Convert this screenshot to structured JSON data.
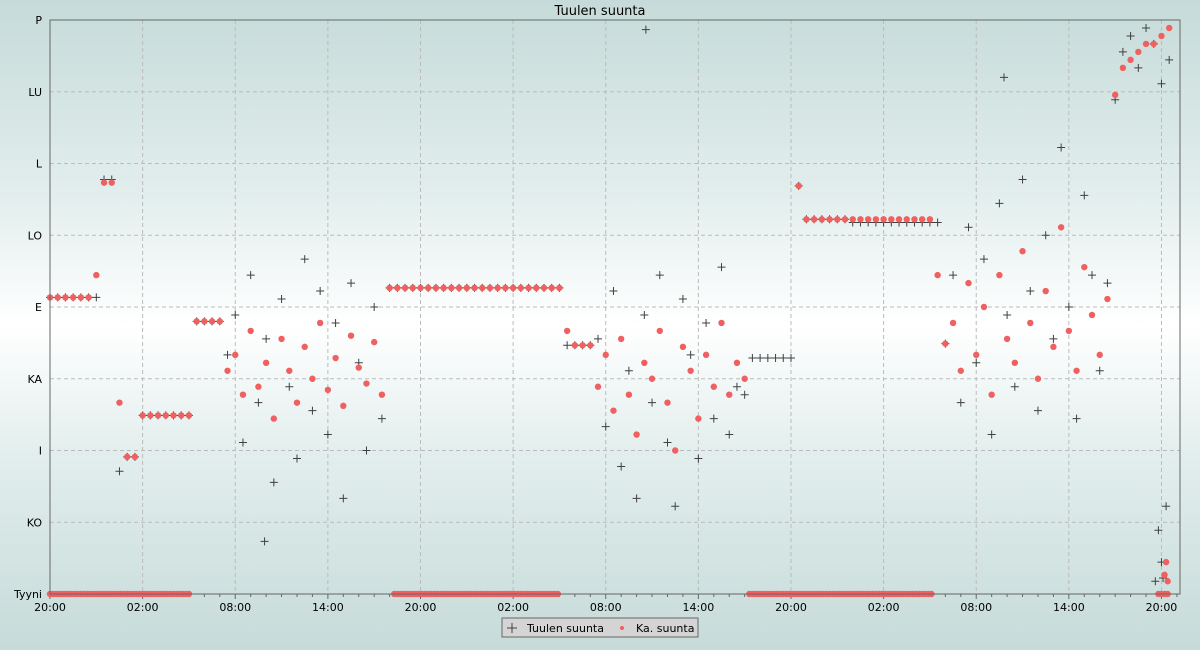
{
  "chart_data": {
    "type": "scatter",
    "title": "Tuulen suunta",
    "xlabel": "",
    "ylabel": "",
    "x_unit": "hours from start",
    "xlim": [
      0,
      73.2
    ],
    "ylim": [
      0,
      360
    ],
    "grid": true,
    "legend_position": "bottom-center",
    "y_ticks": [
      {
        "value": 0,
        "label": "Tyyni"
      },
      {
        "value": 45,
        "label": "KO"
      },
      {
        "value": 90,
        "label": "I"
      },
      {
        "value": 135,
        "label": "KA"
      },
      {
        "value": 180,
        "label": "E"
      },
      {
        "value": 225,
        "label": "LO"
      },
      {
        "value": 270,
        "label": "L"
      },
      {
        "value": 315,
        "label": "LU"
      },
      {
        "value": 360,
        "label": "P"
      }
    ],
    "x_ticks": [
      {
        "value": 0,
        "label": "20:00"
      },
      {
        "value": 6,
        "label": "02:00"
      },
      {
        "value": 12,
        "label": "08:00"
      },
      {
        "value": 18,
        "label": "14:00"
      },
      {
        "value": 24,
        "label": "20:00"
      },
      {
        "value": 30,
        "label": "02:00"
      },
      {
        "value": 36,
        "label": "08:00"
      },
      {
        "value": 42,
        "label": "14:00"
      },
      {
        "value": 48,
        "label": "20:00"
      },
      {
        "value": 54,
        "label": "02:00"
      },
      {
        "value": 60,
        "label": "08:00"
      },
      {
        "value": 66,
        "label": "14:00"
      },
      {
        "value": 72,
        "label": "20:00"
      }
    ],
    "sample_step_hours": 0.5,
    "series": [
      {
        "name": "Tuulen suunta",
        "marker": "plus",
        "color": "#404040",
        "values": [
          186,
          186,
          186,
          186,
          186,
          186,
          186,
          260,
          260,
          77,
          86,
          86,
          112,
          112,
          112,
          112,
          112,
          112,
          112,
          171,
          171,
          171,
          171,
          150,
          175,
          95,
          200,
          120,
          160,
          70,
          185,
          130,
          85,
          210,
          115,
          190,
          100,
          170,
          60,
          195,
          145,
          90,
          180,
          110,
          192,
          192,
          192,
          192,
          192,
          192,
          192,
          192,
          192,
          192,
          192,
          192,
          192,
          192,
          192,
          192,
          192,
          192,
          192,
          192,
          192,
          192,
          192,
          156,
          156,
          156,
          156,
          160,
          105,
          190,
          80,
          140,
          60,
          175,
          120,
          200,
          95,
          55,
          185,
          150,
          85,
          170,
          110,
          205,
          100,
          130,
          125,
          148,
          148,
          148,
          148,
          148,
          148,
          256,
          235,
          235,
          235,
          235,
          235,
          235,
          233,
          233,
          233,
          233,
          233,
          233,
          233,
          233,
          233,
          233,
          233,
          233,
          157,
          200,
          120,
          230,
          145,
          210,
          100,
          245,
          175,
          130,
          260,
          190,
          115,
          225,
          160,
          280,
          180,
          110,
          250,
          200,
          140,
          195,
          310,
          340,
          350,
          330,
          355,
          345,
          320,
          335,
          null
        ],
        "extra_points": [
          [
            38.6,
            354
          ],
          [
            61.8,
            324
          ],
          [
            13.9,
            33
          ],
          [
            71.8,
            40
          ],
          [
            72.0,
            20
          ],
          [
            72.3,
            55
          ],
          [
            72.1,
            10
          ],
          [
            71.6,
            8
          ]
        ]
      },
      {
        "name": "Ka. suunta",
        "marker": "dot",
        "color": "#f06060",
        "values": [
          186,
          186,
          186,
          186,
          186,
          186,
          200,
          258,
          258,
          120,
          86,
          86,
          112,
          112,
          112,
          112,
          112,
          112,
          112,
          171,
          171,
          171,
          171,
          140,
          150,
          125,
          165,
          130,
          145,
          110,
          160,
          140,
          120,
          155,
          135,
          170,
          128,
          148,
          118,
          162,
          142,
          132,
          158,
          125,
          192,
          192,
          192,
          192,
          192,
          192,
          192,
          192,
          192,
          192,
          192,
          192,
          192,
          192,
          192,
          192,
          192,
          192,
          192,
          192,
          192,
          192,
          192,
          165,
          156,
          156,
          156,
          130,
          150,
          115,
          160,
          125,
          100,
          145,
          135,
          165,
          120,
          90,
          155,
          140,
          110,
          150,
          130,
          170,
          125,
          145,
          135,
          0,
          0,
          0,
          0,
          0,
          0,
          256,
          235,
          235,
          235,
          235,
          235,
          235,
          235,
          235,
          235,
          235,
          235,
          235,
          235,
          235,
          235,
          235,
          235,
          200,
          157,
          170,
          140,
          195,
          150,
          180,
          125,
          200,
          160,
          145,
          215,
          170,
          135,
          190,
          155,
          230,
          165,
          140,
          205,
          175,
          150,
          185,
          313,
          330,
          335,
          340,
          345,
          345,
          350,
          355,
          null
        ],
        "extra_points": [
          [
            72.2,
            12
          ],
          [
            72.4,
            8
          ],
          [
            72.3,
            20
          ]
        ],
        "calm_ranges_hours": [
          [
            0,
            9
          ],
          [
            22.3,
            33
          ],
          [
            45.3,
            57.3
          ],
          [
            71.8,
            72.6
          ]
        ]
      }
    ]
  }
}
